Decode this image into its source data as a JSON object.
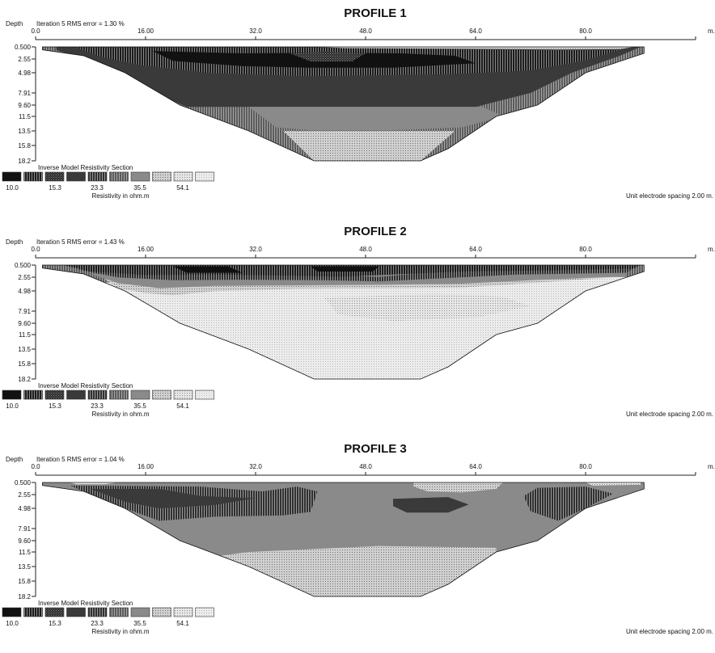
{
  "chart_data": [
    {
      "type": "heatmap",
      "title": "PROFILE 1",
      "rms_label": "Iteration 5 RMS error = 1.30 %",
      "depth_label": "Depth",
      "x_unit": "m.",
      "x_ticks": [
        "0.0",
        "16.00",
        "32.0",
        "48.0",
        "64.0",
        "80.0"
      ],
      "x_range": [
        0,
        96
      ],
      "depth_ticks": [
        "0.500",
        "2.55",
        "4.98",
        "7.91",
        "9.60",
        "11.5",
        "13.5",
        "15.8",
        "18.2"
      ],
      "legend_title": "Inverse Model Resistivity Section",
      "legend_values": [
        "10.0",
        "15.3",
        "23.3",
        "35.5",
        "54.1"
      ],
      "legend_unit": "Resistivity in ohm.m",
      "spacing_note": "Unit electrode spacing 2.00 m.",
      "section_outline": [
        [
          1,
          0.5
        ],
        [
          88.5,
          0.5
        ],
        [
          88.5,
          1.6
        ],
        [
          80,
          4.98
        ],
        [
          73,
          9.6
        ],
        [
          67,
          11.5
        ],
        [
          60,
          16.3
        ],
        [
          56,
          18.2
        ],
        [
          40.5,
          18.2
        ],
        [
          31,
          13.5
        ],
        [
          21,
          9.6
        ],
        [
          13,
          4.98
        ],
        [
          7,
          2.0
        ],
        [
          1,
          1.0
        ]
      ],
      "zones": [
        {
          "level": 3,
          "points": [
            [
              3,
              0.5
            ],
            [
              88,
              0.5
            ],
            [
              85,
              2.0
            ],
            [
              78,
              4.98
            ],
            [
              72,
              7.91
            ],
            [
              64,
              9.9
            ],
            [
              22,
              9.9
            ],
            [
              14,
              6.5
            ],
            [
              8,
              3.0
            ],
            [
              3,
              1.0
            ]
          ]
        },
        {
          "level": 1,
          "points": [
            [
              6,
              0.6
            ],
            [
              42,
              0.6
            ],
            [
              60,
              0.8
            ],
            [
              75,
              1.0
            ],
            [
              85,
              1.0
            ],
            [
              80,
              2.8
            ],
            [
              72,
              4.6
            ],
            [
              60,
              5.2
            ],
            [
              40,
              5.5
            ],
            [
              25,
              5.0
            ],
            [
              15,
              3.6
            ],
            [
              9,
              2.0
            ]
          ]
        },
        {
          "level": 0,
          "points": [
            [
              17,
              1.2
            ],
            [
              30,
              1.6
            ],
            [
              42,
              1.5
            ],
            [
              53,
              1.6
            ],
            [
              61,
              2.0
            ],
            [
              64,
              3.3
            ],
            [
              52,
              4.1
            ],
            [
              40,
              4.1
            ],
            [
              30,
              3.8
            ],
            [
              20,
              2.9
            ]
          ]
        },
        {
          "level": 2,
          "points": [
            [
              37,
              1.6
            ],
            [
              42,
              1.3
            ],
            [
              48,
              1.6
            ],
            [
              46,
              3.0
            ],
            [
              40,
              3.0
            ]
          ]
        },
        {
          "level": 7,
          "points": [
            [
              41,
              0.5
            ],
            [
              87,
              0.5
            ],
            [
              85,
              0.9
            ],
            [
              76,
              0.95
            ],
            [
              60,
              0.8
            ],
            [
              45,
              0.7
            ]
          ]
        },
        {
          "level": 6,
          "points": [
            [
              31,
              9.9
            ],
            [
              65,
              9.9
            ],
            [
              68,
              11.5
            ],
            [
              62,
              13.0
            ],
            [
              52,
              13.4
            ],
            [
              40,
              13.4
            ],
            [
              35,
              13.0
            ]
          ]
        },
        {
          "level": 7,
          "points": [
            [
              36,
              13.5
            ],
            [
              61,
              13.5
            ],
            [
              56,
              18.2
            ],
            [
              40.5,
              18.2
            ]
          ]
        }
      ]
    },
    {
      "type": "heatmap",
      "title": "PROFILE 2",
      "rms_label": "Iteration 5 RMS error = 1.43 %",
      "depth_label": "Depth",
      "x_unit": "m.",
      "x_ticks": [
        "0.0",
        "16.00",
        "32.0",
        "48.0",
        "64.0",
        "80.0"
      ],
      "x_range": [
        0,
        96
      ],
      "depth_ticks": [
        "0.500",
        "2.55",
        "4.98",
        "7.91",
        "9.60",
        "11.5",
        "13.5",
        "15.8",
        "18.2"
      ],
      "legend_title": "Inverse Model Resistivity Section",
      "legend_values": [
        "10.0",
        "15.3",
        "23.3",
        "35.5",
        "54.1"
      ],
      "legend_unit": "Resistivity in ohm.m",
      "spacing_note": "Unit electrode spacing 2.00 m.",
      "section_outline": [
        [
          1,
          0.5
        ],
        [
          88.5,
          0.5
        ],
        [
          88.5,
          1.6
        ],
        [
          80,
          4.98
        ],
        [
          73,
          9.6
        ],
        [
          67,
          11.5
        ],
        [
          60,
          16.3
        ],
        [
          56,
          18.2
        ],
        [
          40.5,
          18.2
        ],
        [
          31,
          13.5
        ],
        [
          21,
          9.6
        ],
        [
          13,
          4.98
        ],
        [
          7,
          2.0
        ],
        [
          1,
          1.0
        ]
      ],
      "zones": [
        {
          "level": 9,
          "points": [
            [
              10,
              3.5
            ],
            [
              86,
              2.5
            ],
            [
              80,
              4.98
            ],
            [
              73,
              9.6
            ],
            [
              67,
              11.5
            ],
            [
              60,
              16.3
            ],
            [
              56,
              18.2
            ],
            [
              40.5,
              18.2
            ],
            [
              31,
              13.5
            ],
            [
              21,
              9.6
            ],
            [
              13,
              4.98
            ]
          ]
        },
        {
          "level": 7,
          "points": [
            [
              10,
              2.8
            ],
            [
              86,
              2.0
            ],
            [
              84,
              2.6
            ],
            [
              72,
              3.6
            ],
            [
              62,
              4.4
            ],
            [
              50,
              4.5
            ],
            [
              38,
              4.6
            ],
            [
              26,
              5.0
            ],
            [
              20,
              5.6
            ],
            [
              16,
              5.3
            ],
            [
              12,
              4.5
            ]
          ]
        },
        {
          "level": 8,
          "points": [
            [
              42,
              6.0
            ],
            [
              58,
              5.4
            ],
            [
              68,
              5.8
            ],
            [
              72,
              7.2
            ],
            [
              64,
              8.8
            ],
            [
              52,
              9.3
            ],
            [
              44,
              8.4
            ]
          ]
        },
        {
          "level": 6,
          "points": [
            [
              8,
              2.0
            ],
            [
              44,
              2.6
            ],
            [
              52,
              2.0
            ],
            [
              62,
              1.9
            ],
            [
              86,
              1.4
            ],
            [
              86,
              2.4
            ],
            [
              72,
              3.1
            ],
            [
              62,
              3.7
            ],
            [
              50,
              3.9
            ],
            [
              38,
              4.0
            ],
            [
              26,
              4.1
            ],
            [
              18,
              4.5
            ],
            [
              12,
              3.6
            ]
          ]
        },
        {
          "level": 4,
          "points": [
            [
              6,
              1.2
            ],
            [
              40,
              2.0
            ],
            [
              50,
              2.5
            ],
            [
              62,
              1.2
            ],
            [
              87,
              1.0
            ],
            [
              86,
              1.8
            ],
            [
              70,
              2.1
            ],
            [
              60,
              2.7
            ],
            [
              50,
              3.3
            ],
            [
              42,
              3.1
            ],
            [
              30,
              3.0
            ],
            [
              20,
              3.1
            ],
            [
              12,
              2.6
            ]
          ]
        },
        {
          "level": 1,
          "points": [
            [
              4,
              0.5
            ],
            [
              88,
              0.5
            ],
            [
              87,
              1.1
            ],
            [
              75,
              1.4
            ],
            [
              62,
              1.6
            ],
            [
              52,
              2.1
            ],
            [
              44,
              2.5
            ],
            [
              38,
              2.3
            ],
            [
              26,
              2.1
            ],
            [
              16,
              2.2
            ],
            [
              8,
              1.6
            ]
          ]
        },
        {
          "level": 0,
          "points": [
            [
              20,
              0.7
            ],
            [
              28,
              0.7
            ],
            [
              30,
              1.8
            ],
            [
              22,
              1.8
            ]
          ]
        },
        {
          "level": 0,
          "points": [
            [
              40,
              0.7
            ],
            [
              50,
              0.7
            ],
            [
              49,
              1.6
            ],
            [
              41,
              1.6
            ]
          ]
        }
      ]
    },
    {
      "type": "heatmap",
      "title": "PROFILE 3",
      "rms_label": "Iteration 5 RMS error = 1.04 %",
      "depth_label": "Depth",
      "x_unit": "m.",
      "x_ticks": [
        "0.0",
        "16.00",
        "32.0",
        "48.0",
        "64.0",
        "80.0"
      ],
      "x_range": [
        0,
        96
      ],
      "depth_ticks": [
        "0.500",
        "2.55",
        "4.98",
        "7.91",
        "9.60",
        "11.5",
        "13.5",
        "15.8",
        "18.2"
      ],
      "legend_title": "Inverse Model Resistivity Section",
      "legend_values": [
        "10.0",
        "15.3",
        "23.3",
        "35.5",
        "54.1"
      ],
      "legend_unit": "Resistivity in ohm.m",
      "spacing_note": "Unit electrode spacing 2.00 m.",
      "section_outline": [
        [
          1,
          0.5
        ],
        [
          88.5,
          0.5
        ],
        [
          88.5,
          1.6
        ],
        [
          80,
          4.98
        ],
        [
          73,
          9.6
        ],
        [
          67,
          11.5
        ],
        [
          60,
          16.3
        ],
        [
          56,
          18.2
        ],
        [
          40.5,
          18.2
        ],
        [
          31,
          13.5
        ],
        [
          21,
          9.6
        ],
        [
          13,
          4.98
        ],
        [
          7,
          2.0
        ],
        [
          1,
          1.0
        ]
      ],
      "zones": [
        {
          "level": 6,
          "points": [
            [
              1,
              0.5
            ],
            [
              88.5,
              0.5
            ],
            [
              88.5,
              1.6
            ],
            [
              80,
              4.98
            ],
            [
              73,
              9.6
            ],
            [
              67,
              11.5
            ],
            [
              60,
              16.3
            ],
            [
              56,
              18.2
            ],
            [
              40.5,
              18.2
            ],
            [
              31,
              13.5
            ],
            [
              21,
              9.6
            ],
            [
              13,
              4.98
            ],
            [
              7,
              2.0
            ],
            [
              1,
              1.0
            ]
          ]
        },
        {
          "level": 4,
          "points": [
            [
              5,
              1.0
            ],
            [
              24,
              1.2
            ],
            [
              33,
              2.0
            ],
            [
              38,
              1.2
            ],
            [
              41,
              2.0
            ],
            [
              40,
              5.5
            ],
            [
              36,
              6.0
            ],
            [
              26,
              6.2
            ],
            [
              18,
              6.8
            ],
            [
              13,
              4.98
            ],
            [
              7,
              2.0
            ]
          ]
        },
        {
          "level": 3,
          "points": [
            [
              8,
              1.6
            ],
            [
              18,
              1.6
            ],
            [
              24,
              2.8
            ],
            [
              32,
              3.2
            ],
            [
              26,
              4.4
            ],
            [
              18,
              4.98
            ],
            [
              13,
              3.8
            ]
          ]
        },
        {
          "level": 4,
          "points": [
            [
              73,
              1.4
            ],
            [
              80,
              1.2
            ],
            [
              84,
              2.4
            ],
            [
              80,
              4.98
            ],
            [
              76,
              6.8
            ],
            [
              72,
              5.4
            ],
            [
              71,
              2.8
            ]
          ]
        },
        {
          "level": 3,
          "points": [
            [
              52,
              3.3
            ],
            [
              60,
              3.0
            ],
            [
              63,
              4.3
            ],
            [
              60,
              5.6
            ],
            [
              54,
              5.6
            ],
            [
              52,
              4.6
            ]
          ]
        },
        {
          "level": 7,
          "points": [
            [
              55,
              0.5
            ],
            [
              68,
              0.5
            ],
            [
              67,
              1.6
            ],
            [
              62,
              2.2
            ],
            [
              57,
              2.0
            ],
            [
              55,
              1.2
            ]
          ]
        },
        {
          "level": 8,
          "points": [
            [
              5,
              0.5
            ],
            [
              12,
              0.5
            ],
            [
              10,
              0.8
            ],
            [
              6,
              0.8
            ]
          ]
        },
        {
          "level": 8,
          "points": [
            [
              80,
              0.5
            ],
            [
              88,
              0.5
            ],
            [
              88,
              0.9
            ],
            [
              81,
              1.0
            ]
          ]
        },
        {
          "level": 7,
          "points": [
            [
              31,
              11.5
            ],
            [
              50,
              10.5
            ],
            [
              67,
              10.8
            ],
            [
              67,
              11.5
            ],
            [
              60,
              16.3
            ],
            [
              56,
              18.2
            ],
            [
              40.5,
              18.2
            ],
            [
              31,
              13.5
            ],
            [
              27,
              12.0
            ]
          ]
        }
      ]
    }
  ]
}
